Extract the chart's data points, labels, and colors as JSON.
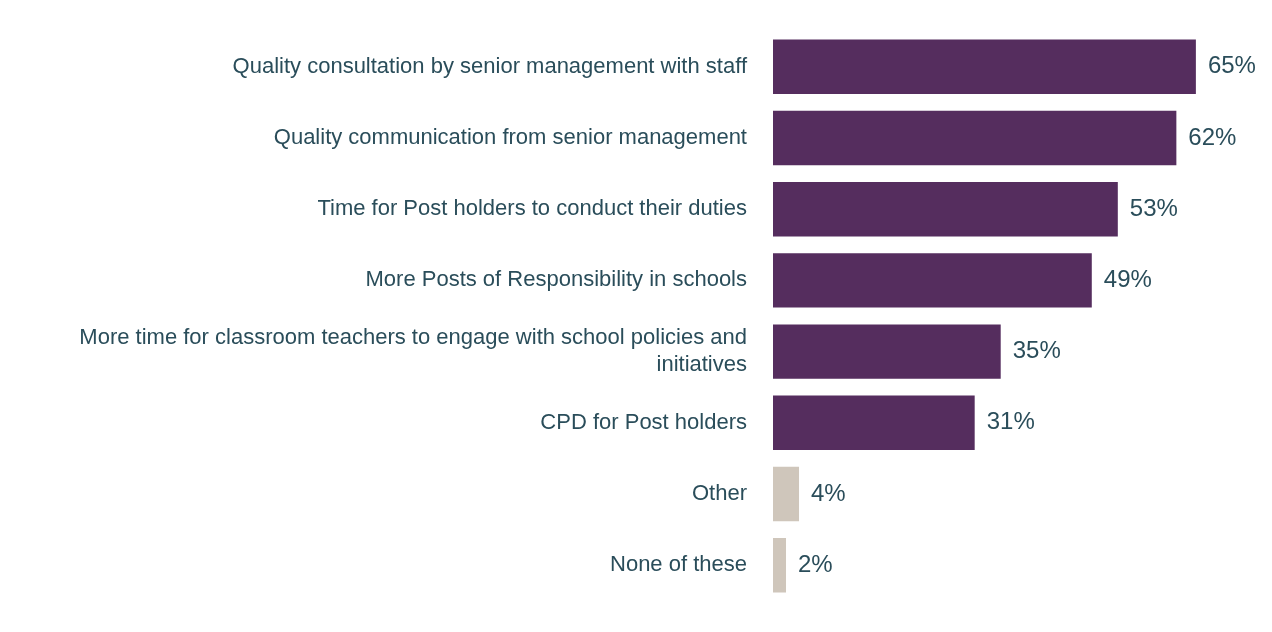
{
  "chart_data": {
    "type": "bar",
    "orientation": "horizontal",
    "categories": [
      "Quality consultation by senior management with staff",
      "Quality communication from senior management",
      "Time for Post holders to conduct their duties",
      "More Posts of Responsibility in schools",
      "More time for classroom teachers to engage with school policies and initiatives",
      "CPD for Post holders",
      "Other",
      "None of these"
    ],
    "values": [
      65,
      62,
      53,
      49,
      35,
      31,
      4,
      2
    ],
    "colors": [
      "#552d5e",
      "#552d5e",
      "#552d5e",
      "#552d5e",
      "#552d5e",
      "#552d5e",
      "#cfc6bb",
      "#cfc6bb"
    ],
    "value_labels": [
      "65%",
      "62%",
      "53%",
      "49%",
      "35%",
      "31%",
      "4%",
      "2%"
    ],
    "legend": false,
    "grid": false
  }
}
